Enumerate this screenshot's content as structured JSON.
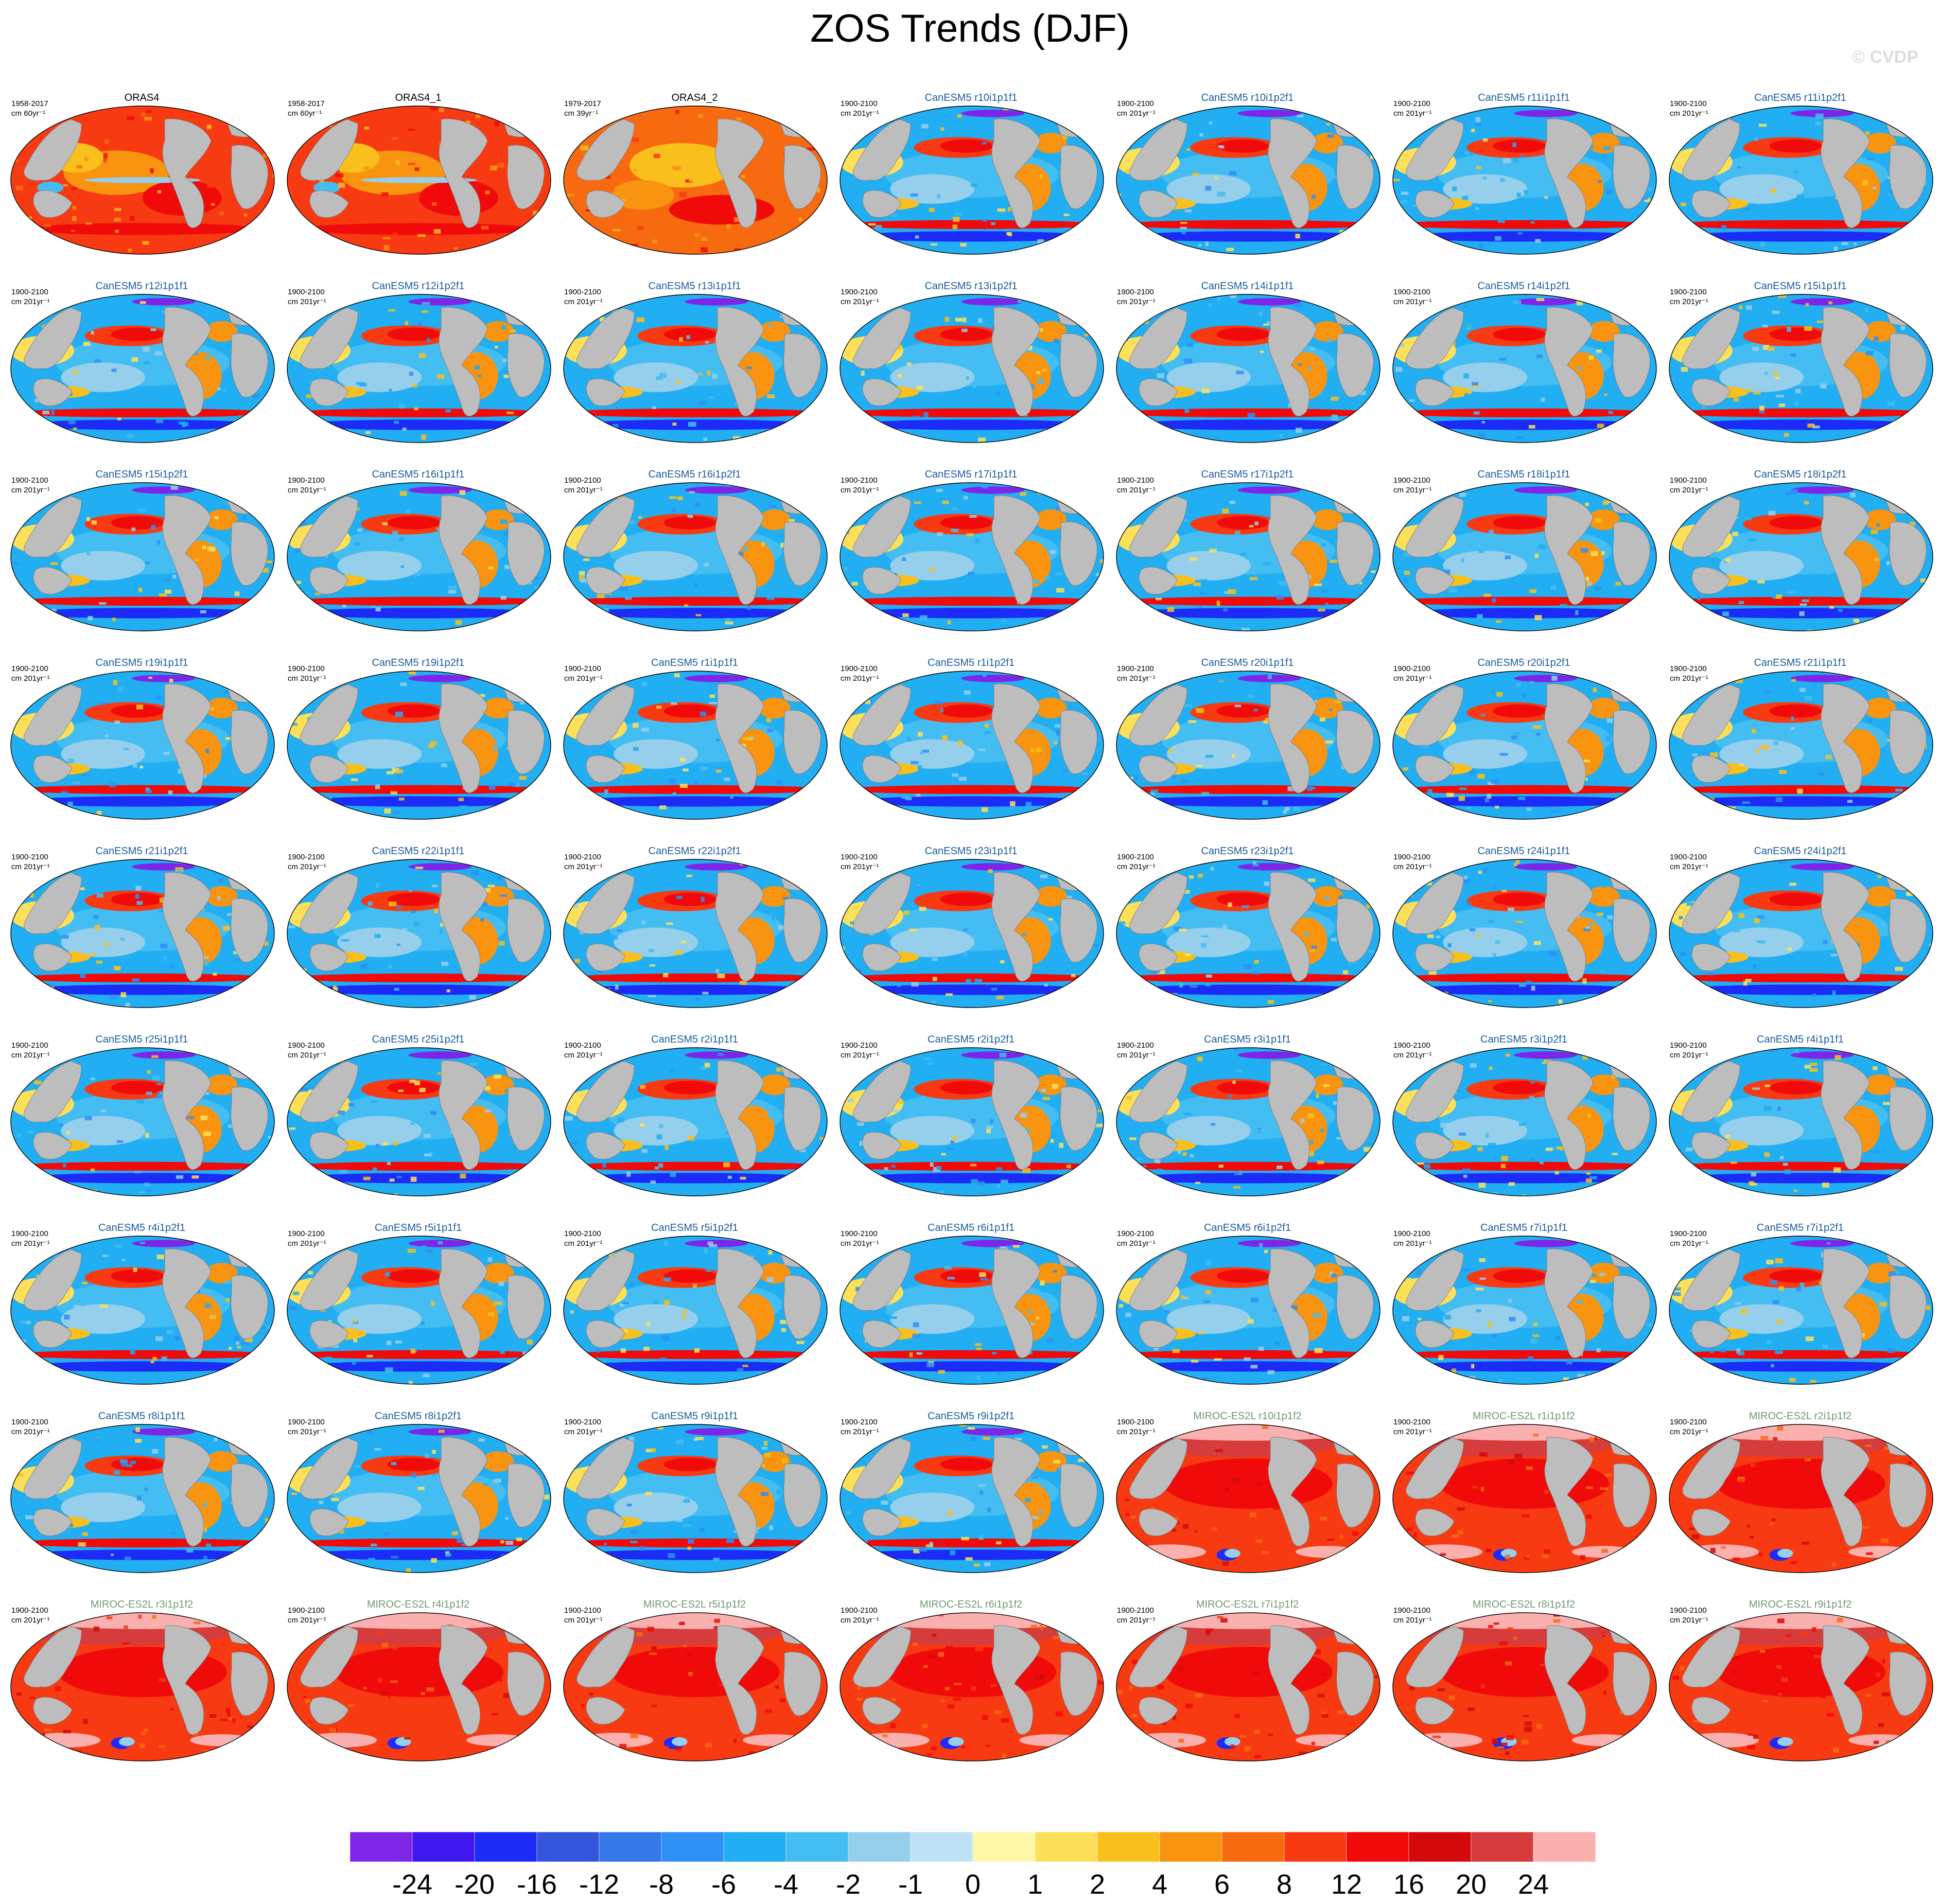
{
  "title": "ZOS Trends (DJF)",
  "credit": "© CVDP",
  "colors": {
    "obs_title": "#000000",
    "canesm_title": "#1a5c9e",
    "miroc_title": "#6e9a6e",
    "land": "#bdbdbd",
    "missing": "#ffffff"
  },
  "panels": [
    {
      "title": "ORAS4",
      "period": "1958-2017",
      "units": "cm 60yr⁻¹",
      "group": "obs",
      "pattern": "obs"
    },
    {
      "title": "ORAS4_1",
      "period": "1958-2017",
      "units": "cm 60yr⁻¹",
      "group": "obs",
      "pattern": "obs"
    },
    {
      "title": "ORAS4_2",
      "period": "1979-2017",
      "units": "cm 39yr⁻¹",
      "group": "obs",
      "pattern": "obs2"
    },
    {
      "title": "CanESM5 r10i1p1f1",
      "period": "1900-2100",
      "units": "cm 201yr⁻¹",
      "group": "canesm",
      "pattern": "canesm"
    },
    {
      "title": "CanESM5 r10i1p2f1",
      "period": "1900-2100",
      "units": "cm 201yr⁻¹",
      "group": "canesm",
      "pattern": "canesm"
    },
    {
      "title": "CanESM5 r11i1p1f1",
      "period": "1900-2100",
      "units": "cm 201yr⁻¹",
      "group": "canesm",
      "pattern": "canesm"
    },
    {
      "title": "CanESM5 r11i1p2f1",
      "period": "1900-2100",
      "units": "cm 201yr⁻¹",
      "group": "canesm",
      "pattern": "canesm"
    },
    {
      "title": "CanESM5 r12i1p1f1",
      "period": "1900-2100",
      "units": "cm 201yr⁻¹",
      "group": "canesm",
      "pattern": "canesm"
    },
    {
      "title": "CanESM5 r12i1p2f1",
      "period": "1900-2100",
      "units": "cm 201yr⁻¹",
      "group": "canesm",
      "pattern": "canesm"
    },
    {
      "title": "CanESM5 r13i1p1f1",
      "period": "1900-2100",
      "units": "cm 201yr⁻¹",
      "group": "canesm",
      "pattern": "canesm"
    },
    {
      "title": "CanESM5 r13i1p2f1",
      "period": "1900-2100",
      "units": "cm 201yr⁻¹",
      "group": "canesm",
      "pattern": "canesm"
    },
    {
      "title": "CanESM5 r14i1p1f1",
      "period": "1900-2100",
      "units": "cm 201yr⁻¹",
      "group": "canesm",
      "pattern": "canesm"
    },
    {
      "title": "CanESM5 r14i1p2f1",
      "period": "1900-2100",
      "units": "cm 201yr⁻¹",
      "group": "canesm",
      "pattern": "canesm"
    },
    {
      "title": "CanESM5 r15i1p1f1",
      "period": "1900-2100",
      "units": "cm 201yr⁻¹",
      "group": "canesm",
      "pattern": "canesm"
    },
    {
      "title": "CanESM5 r15i1p2f1",
      "period": "1900-2100",
      "units": "cm 201yr⁻¹",
      "group": "canesm",
      "pattern": "canesm"
    },
    {
      "title": "CanESM5 r16i1p1f1",
      "period": "1900-2100",
      "units": "cm 201yr⁻¹",
      "group": "canesm",
      "pattern": "canesm"
    },
    {
      "title": "CanESM5 r16i1p2f1",
      "period": "1900-2100",
      "units": "cm 201yr⁻¹",
      "group": "canesm",
      "pattern": "canesm"
    },
    {
      "title": "CanESM5 r17i1p1f1",
      "period": "1900-2100",
      "units": "cm 201yr⁻¹",
      "group": "canesm",
      "pattern": "canesm"
    },
    {
      "title": "CanESM5 r17i1p2f1",
      "period": "1900-2100",
      "units": "cm 201yr⁻¹",
      "group": "canesm",
      "pattern": "canesm"
    },
    {
      "title": "CanESM5 r18i1p1f1",
      "period": "1900-2100",
      "units": "cm 201yr⁻¹",
      "group": "canesm",
      "pattern": "canesm"
    },
    {
      "title": "CanESM5 r18i1p2f1",
      "period": "1900-2100",
      "units": "cm 201yr⁻¹",
      "group": "canesm",
      "pattern": "canesm"
    },
    {
      "title": "CanESM5 r19i1p1f1",
      "period": "1900-2100",
      "units": "cm 201yr⁻¹",
      "group": "canesm",
      "pattern": "canesm"
    },
    {
      "title": "CanESM5 r19i1p2f1",
      "period": "1900-2100",
      "units": "cm 201yr⁻¹",
      "group": "canesm",
      "pattern": "canesm"
    },
    {
      "title": "CanESM5 r1i1p1f1",
      "period": "1900-2100",
      "units": "cm 201yr⁻¹",
      "group": "canesm",
      "pattern": "canesm"
    },
    {
      "title": "CanESM5 r1i1p2f1",
      "period": "1900-2100",
      "units": "cm 201yr⁻¹",
      "group": "canesm",
      "pattern": "canesm"
    },
    {
      "title": "CanESM5 r20i1p1f1",
      "period": "1900-2100",
      "units": "cm 201yr⁻¹",
      "group": "canesm",
      "pattern": "canesm"
    },
    {
      "title": "CanESM5 r20i1p2f1",
      "period": "1900-2100",
      "units": "cm 201yr⁻¹",
      "group": "canesm",
      "pattern": "canesm"
    },
    {
      "title": "CanESM5 r21i1p1f1",
      "period": "1900-2100",
      "units": "cm 201yr⁻¹",
      "group": "canesm",
      "pattern": "canesm"
    },
    {
      "title": "CanESM5 r21i1p2f1",
      "period": "1900-2100",
      "units": "cm 201yr⁻¹",
      "group": "canesm",
      "pattern": "canesm"
    },
    {
      "title": "CanESM5 r22i1p1f1",
      "period": "1900-2100",
      "units": "cm 201yr⁻¹",
      "group": "canesm",
      "pattern": "canesm"
    },
    {
      "title": "CanESM5 r22i1p2f1",
      "period": "1900-2100",
      "units": "cm 201yr⁻¹",
      "group": "canesm",
      "pattern": "canesm"
    },
    {
      "title": "CanESM5 r23i1p1f1",
      "period": "1900-2100",
      "units": "cm 201yr⁻¹",
      "group": "canesm",
      "pattern": "canesm"
    },
    {
      "title": "CanESM5 r23i1p2f1",
      "period": "1900-2100",
      "units": "cm 201yr⁻¹",
      "group": "canesm",
      "pattern": "canesm"
    },
    {
      "title": "CanESM5 r24i1p1f1",
      "period": "1900-2100",
      "units": "cm 201yr⁻¹",
      "group": "canesm",
      "pattern": "canesm"
    },
    {
      "title": "CanESM5 r24i1p2f1",
      "period": "1900-2100",
      "units": "cm 201yr⁻¹",
      "group": "canesm",
      "pattern": "canesm"
    },
    {
      "title": "CanESM5 r25i1p1f1",
      "period": "1900-2100",
      "units": "cm 201yr⁻¹",
      "group": "canesm",
      "pattern": "canesm"
    },
    {
      "title": "CanESM5 r25i1p2f1",
      "period": "1900-2100",
      "units": "cm 201yr⁻¹",
      "group": "canesm",
      "pattern": "canesm"
    },
    {
      "title": "CanESM5 r2i1p1f1",
      "period": "1900-2100",
      "units": "cm 201yr⁻¹",
      "group": "canesm",
      "pattern": "canesm"
    },
    {
      "title": "CanESM5 r2i1p2f1",
      "period": "1900-2100",
      "units": "cm 201yr⁻¹",
      "group": "canesm",
      "pattern": "canesm"
    },
    {
      "title": "CanESM5 r3i1p1f1",
      "period": "1900-2100",
      "units": "cm 201yr⁻¹",
      "group": "canesm",
      "pattern": "canesm"
    },
    {
      "title": "CanESM5 r3i1p2f1",
      "period": "1900-2100",
      "units": "cm 201yr⁻¹",
      "group": "canesm",
      "pattern": "canesm"
    },
    {
      "title": "CanESM5 r4i1p1f1",
      "period": "1900-2100",
      "units": "cm 201yr⁻¹",
      "group": "canesm",
      "pattern": "canesm"
    },
    {
      "title": "CanESM5 r4i1p2f1",
      "period": "1900-2100",
      "units": "cm 201yr⁻¹",
      "group": "canesm",
      "pattern": "canesm"
    },
    {
      "title": "CanESM5 r5i1p1f1",
      "period": "1900-2100",
      "units": "cm 201yr⁻¹",
      "group": "canesm",
      "pattern": "canesm"
    },
    {
      "title": "CanESM5 r5i1p2f1",
      "period": "1900-2100",
      "units": "cm 201yr⁻¹",
      "group": "canesm",
      "pattern": "canesm"
    },
    {
      "title": "CanESM5 r6i1p1f1",
      "period": "1900-2100",
      "units": "cm 201yr⁻¹",
      "group": "canesm",
      "pattern": "canesm"
    },
    {
      "title": "CanESM5 r6i1p2f1",
      "period": "1900-2100",
      "units": "cm 201yr⁻¹",
      "group": "canesm",
      "pattern": "canesm"
    },
    {
      "title": "CanESM5 r7i1p1f1",
      "period": "1900-2100",
      "units": "cm 201yr⁻¹",
      "group": "canesm",
      "pattern": "canesm"
    },
    {
      "title": "CanESM5 r7i1p2f1",
      "period": "1900-2100",
      "units": "cm 201yr⁻¹",
      "group": "canesm",
      "pattern": "canesm"
    },
    {
      "title": "CanESM5 r8i1p1f1",
      "period": "1900-2100",
      "units": "cm 201yr⁻¹",
      "group": "canesm",
      "pattern": "canesm"
    },
    {
      "title": "CanESM5 r8i1p2f1",
      "period": "1900-2100",
      "units": "cm 201yr⁻¹",
      "group": "canesm",
      "pattern": "canesm"
    },
    {
      "title": "CanESM5 r9i1p1f1",
      "period": "1900-2100",
      "units": "cm 201yr⁻¹",
      "group": "canesm",
      "pattern": "canesm"
    },
    {
      "title": "CanESM5 r9i1p2f1",
      "period": "1900-2100",
      "units": "cm 201yr⁻¹",
      "group": "canesm",
      "pattern": "canesm"
    },
    {
      "title": "MIROC-ES2L r10i1p1f2",
      "period": "1900-2100",
      "units": "cm 201yr⁻¹",
      "group": "miroc",
      "pattern": "miroc"
    },
    {
      "title": "MIROC-ES2L r1i1p1f2",
      "period": "1900-2100",
      "units": "cm 201yr⁻¹",
      "group": "miroc",
      "pattern": "miroc"
    },
    {
      "title": "MIROC-ES2L r2i1p1f2",
      "period": "1900-2100",
      "units": "cm 201yr⁻¹",
      "group": "miroc",
      "pattern": "miroc"
    },
    {
      "title": "MIROC-ES2L r3i1p1f2",
      "period": "1900-2100",
      "units": "cm 201yr⁻¹",
      "group": "miroc",
      "pattern": "miroc"
    },
    {
      "title": "MIROC-ES2L r4i1p1f2",
      "period": "1900-2100",
      "units": "cm 201yr⁻¹",
      "group": "miroc",
      "pattern": "miroc"
    },
    {
      "title": "MIROC-ES2L r5i1p1f2",
      "period": "1900-2100",
      "units": "cm 201yr⁻¹",
      "group": "miroc",
      "pattern": "miroc"
    },
    {
      "title": "MIROC-ES2L r6i1p1f2",
      "period": "1900-2100",
      "units": "cm 201yr⁻¹",
      "group": "miroc",
      "pattern": "miroc"
    },
    {
      "title": "MIROC-ES2L r7i1p1f2",
      "period": "1900-2100",
      "units": "cm 201yr⁻¹",
      "group": "miroc",
      "pattern": "miroc"
    },
    {
      "title": "MIROC-ES2L r8i1p1f2",
      "period": "1900-2100",
      "units": "cm 201yr⁻¹",
      "group": "miroc",
      "pattern": "miroc"
    },
    {
      "title": "MIROC-ES2L r9i1p1f2",
      "period": "1900-2100",
      "units": "cm 201yr⁻¹",
      "group": "miroc",
      "pattern": "miroc"
    }
  ],
  "chart_data": {
    "type": "heatmap",
    "title": "ZOS Trends (DJF)",
    "projection": "global map panels",
    "colorbar": {
      "levels": [
        -24,
        -20,
        -16,
        -12,
        -8,
        -6,
        -4,
        -2,
        -1,
        0,
        1,
        2,
        4,
        6,
        8,
        12,
        16,
        20,
        24
      ],
      "tick_labels": [
        "-24",
        "-20",
        "-16",
        "-12",
        "-8",
        "-6",
        "-4",
        "-2",
        "-1",
        "0",
        "1",
        "2",
        "4",
        "6",
        "8",
        "12",
        "16",
        "20",
        "24"
      ],
      "colors": [
        "#7d26e8",
        "#3f17f0",
        "#1c2cf6",
        "#3556dc",
        "#3578ea",
        "#2e8ff6",
        "#21aef2",
        "#44bdf2",
        "#95cfeb",
        "#bfe3f6",
        "#fdf8a8",
        "#fde05a",
        "#f9bf1b",
        "#f99410",
        "#f86a10",
        "#f83a12",
        "#f00a0a",
        "#d40a0a",
        "#d63c3c",
        "#fbb0b0"
      ]
    }
  }
}
